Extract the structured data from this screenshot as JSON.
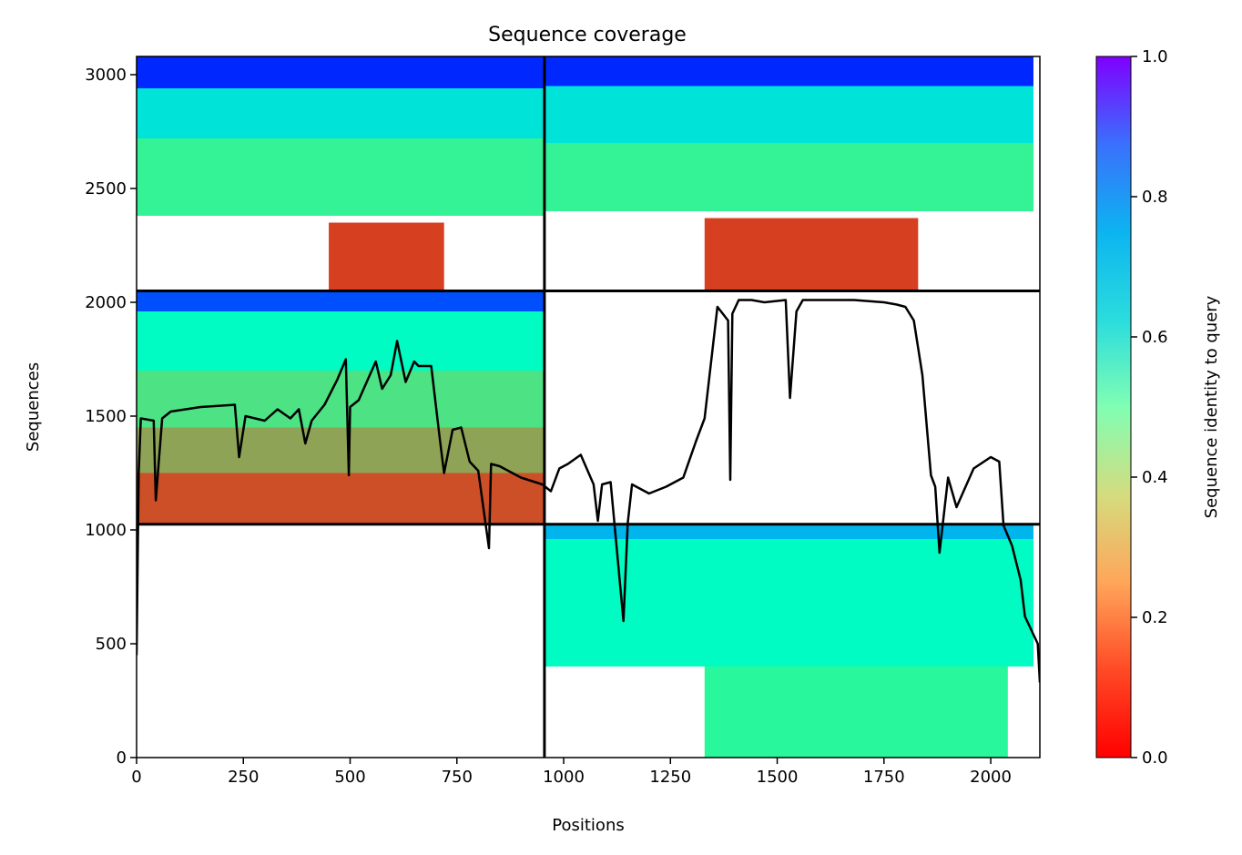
{
  "chart_data": {
    "type": "heatmap",
    "title": "Sequence coverage",
    "xlabel": "Positions",
    "ylabel": "Sequences",
    "xlim": [
      0,
      2115
    ],
    "ylim": [
      0,
      3080
    ],
    "x_ticks": [
      0,
      250,
      500,
      750,
      1000,
      1250,
      1500,
      1750,
      2000
    ],
    "y_ticks": [
      0,
      500,
      1000,
      1500,
      2000,
      2500,
      3000
    ],
    "colorbar": {
      "label": "Sequence identity to query",
      "range": [
        0.0,
        1.0
      ],
      "ticks": [
        "0.0",
        "0.2",
        "0.4",
        "0.6",
        "0.8",
        "1.0"
      ],
      "colormap": "rainbow_r"
    },
    "chain_boundaries": {
      "x": [
        955
      ],
      "y": [
        1025,
        2050
      ]
    },
    "blocks": [
      {
        "rows": [
          2050,
          3080
        ],
        "x": [
          0,
          955
        ],
        "bands": [
          {
            "rows": [
              2940,
              3080
            ],
            "identity": 0.95,
            "start": 0,
            "end": 955
          },
          {
            "rows": [
              2720,
              2940
            ],
            "identity": 0.65,
            "start": 0,
            "end": 955
          },
          {
            "rows": [
              2380,
              2720
            ],
            "identity": 0.4,
            "start": 0,
            "end": 955
          },
          {
            "rows": [
              2050,
              2350
            ],
            "identity": 0.08,
            "start": 450,
            "end": 720
          }
        ]
      },
      {
        "rows": [
          2050,
          3080
        ],
        "x": [
          955,
          2115
        ],
        "bands": [
          {
            "rows": [
              2950,
              3080
            ],
            "identity": 0.95,
            "start": 955,
            "end": 2100
          },
          {
            "rows": [
              2700,
              2950
            ],
            "identity": 0.65,
            "start": 955,
            "end": 2100
          },
          {
            "rows": [
              2400,
              2700
            ],
            "identity": 0.4,
            "start": 955,
            "end": 2100
          },
          {
            "rows": [
              2050,
              2370
            ],
            "identity": 0.08,
            "start": 1330,
            "end": 1830
          }
        ]
      },
      {
        "rows": [
          1025,
          2050
        ],
        "x": [
          0,
          955
        ],
        "bands": [
          {
            "rows": [
              1960,
              2050
            ],
            "identity": 0.9,
            "start": 0,
            "end": 955
          },
          {
            "rows": [
              1700,
              1960
            ],
            "identity": 0.55,
            "start": 0,
            "end": 955
          },
          {
            "rows": [
              1450,
              1700
            ],
            "identity": 0.35,
            "start": 0,
            "end": 955
          },
          {
            "rows": [
              1250,
              1450
            ],
            "identity": 0.22,
            "start": 0,
            "end": 955
          },
          {
            "rows": [
              1025,
              1250
            ],
            "identity": 0.1,
            "start": 0,
            "end": 955
          }
        ]
      },
      {
        "rows": [
          0,
          1025
        ],
        "x": [
          955,
          2115
        ],
        "bands": [
          {
            "rows": [
              960,
              1025
            ],
            "identity": 0.75,
            "start": 955,
            "end": 2100
          },
          {
            "rows": [
              400,
              960
            ],
            "identity": 0.55,
            "start": 955,
            "end": 2100
          },
          {
            "rows": [
              0,
              400
            ],
            "identity": 0.42,
            "start": 1330,
            "end": 2040
          }
        ]
      }
    ],
    "coverage_line": {
      "x": [
        0,
        5,
        10,
        40,
        45,
        60,
        80,
        150,
        230,
        240,
        255,
        300,
        330,
        360,
        380,
        395,
        410,
        440,
        470,
        490,
        497,
        500,
        520,
        560,
        575,
        595,
        610,
        630,
        650,
        660,
        690,
        710,
        720,
        740,
        760,
        780,
        800,
        825,
        830,
        850,
        900,
        950,
        970,
        990,
        1010,
        1040,
        1070,
        1080,
        1090,
        1110,
        1140,
        1150,
        1160,
        1200,
        1240,
        1280,
        1310,
        1330,
        1360,
        1385,
        1390,
        1395,
        1410,
        1440,
        1470,
        1520,
        1530,
        1545,
        1560,
        1600,
        1680,
        1750,
        1780,
        1800,
        1820,
        1840,
        1860,
        1870,
        1880,
        1900,
        1920,
        1960,
        2000,
        2020,
        2030,
        2050,
        2070,
        2080,
        2100,
        2110,
        2115
      ],
      "y": [
        450,
        1250,
        1490,
        1480,
        1130,
        1490,
        1520,
        1540,
        1550,
        1320,
        1500,
        1480,
        1530,
        1490,
        1530,
        1380,
        1480,
        1550,
        1660,
        1750,
        1240,
        1540,
        1570,
        1740,
        1620,
        1680,
        1830,
        1650,
        1740,
        1720,
        1720,
        1400,
        1250,
        1440,
        1450,
        1300,
        1260,
        920,
        1290,
        1280,
        1230,
        1200,
        1170,
        1270,
        1290,
        1330,
        1200,
        1040,
        1200,
        1210,
        600,
        1030,
        1200,
        1160,
        1190,
        1230,
        1390,
        1490,
        1980,
        1920,
        1220,
        1950,
        2010,
        2010,
        2000,
        2010,
        1580,
        1960,
        2010,
        2010,
        2010,
        2000,
        1990,
        1980,
        1920,
        1680,
        1240,
        1190,
        900,
        1230,
        1100,
        1270,
        1320,
        1300,
        1020,
        930,
        780,
        620,
        540,
        500,
        330
      ]
    }
  }
}
